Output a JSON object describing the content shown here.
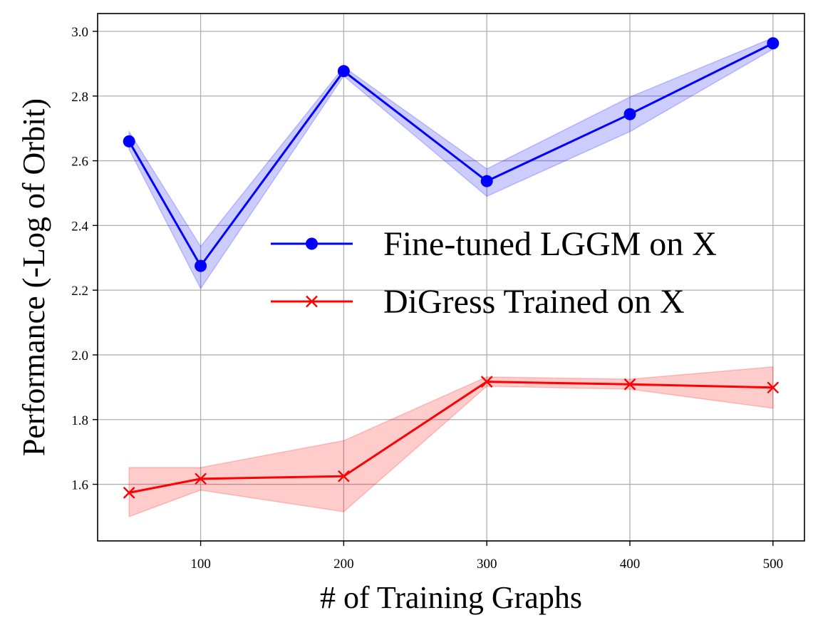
{
  "chart_data": {
    "type": "line",
    "title": "",
    "xlabel": "# of Training Graphs",
    "ylabel": "Performance (-Log of Orbit)",
    "xlim": [
      28,
      522
    ],
    "ylim": [
      1.425,
      3.055
    ],
    "xticks": [
      100,
      200,
      300,
      400,
      500
    ],
    "xtick_labels": [
      "100",
      "200",
      "300",
      "400",
      "500"
    ],
    "yticks": [
      1.6,
      1.8,
      2.0,
      2.2,
      2.4,
      2.6,
      2.8,
      3.0
    ],
    "ytick_labels": [
      "1.6",
      "1.8",
      "2.0",
      "2.2",
      "2.4",
      "2.6",
      "2.8",
      "3.0"
    ],
    "grid": true,
    "legend_position": "center-right",
    "x": [
      50,
      100,
      200,
      300,
      400,
      500
    ],
    "series": [
      {
        "name": "Fine-tuned LGGM on X",
        "color": "#0000ff",
        "marker": "circle",
        "values": [
          2.66,
          2.275,
          2.877,
          2.537,
          2.744,
          2.963
        ],
        "band_low": [
          2.635,
          2.205,
          2.862,
          2.49,
          2.69,
          2.945
        ],
        "band_high": [
          2.69,
          2.335,
          2.89,
          2.575,
          2.797,
          2.98
        ]
      },
      {
        "name": "DiGress Trained on X",
        "color": "#ff0000",
        "marker": "x",
        "values": [
          1.574,
          1.617,
          1.625,
          1.917,
          1.909,
          1.899
        ],
        "band_low": [
          1.5,
          1.582,
          1.515,
          1.903,
          1.894,
          1.835
        ],
        "band_high": [
          1.652,
          1.652,
          1.735,
          1.932,
          1.925,
          1.963
        ]
      }
    ]
  }
}
